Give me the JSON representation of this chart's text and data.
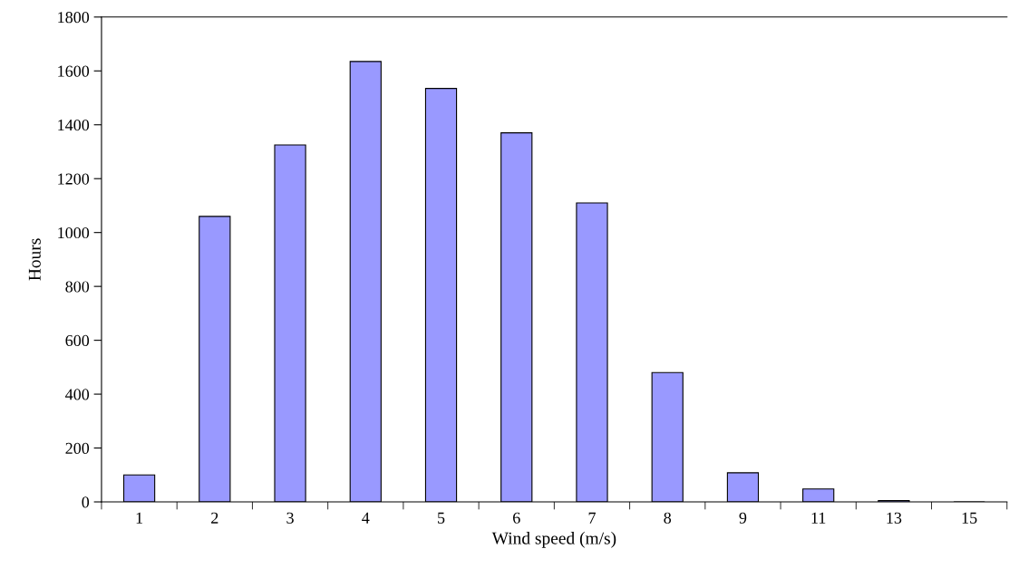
{
  "chart_data": {
    "type": "bar",
    "xlabel": "Wind speed (m/s)",
    "ylabel": "Hours",
    "categories": [
      "1",
      "2",
      "3",
      "4",
      "5",
      "6",
      "7",
      "8",
      "9",
      "11",
      "13",
      "15"
    ],
    "values": [
      100,
      1060,
      1325,
      1635,
      1535,
      1370,
      1110,
      480,
      108,
      48,
      5,
      0
    ],
    "color": "#9999ff",
    "ylim": [
      0,
      1800
    ],
    "yticks": [
      0,
      200,
      400,
      600,
      800,
      1000,
      1200,
      1400,
      1600,
      1800
    ],
    "grid": false
  }
}
